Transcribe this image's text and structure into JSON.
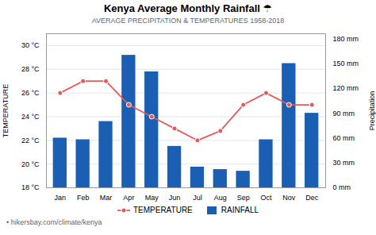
{
  "chart_data": {
    "type": "bar",
    "title": "Kenya Average Monthly Rainfall ☂",
    "subtitle": "AVERAGE PRECIPITATION & TEMPERATURES 1958-2018",
    "footer": "• hikersbay.com/climate/kenya",
    "categories": [
      "Jan",
      "Feb",
      "Mar",
      "Apr",
      "May",
      "Jun",
      "Jul",
      "Aug",
      "Sep",
      "Oct",
      "Nov",
      "Dec"
    ],
    "series": [
      {
        "name": "TEMPERATURE",
        "type": "line",
        "marker": "circle",
        "color": "#e05c5c",
        "values": [
          26.0,
          27.0,
          27.0,
          25.0,
          24.0,
          23.0,
          22.0,
          22.8,
          25.0,
          26.0,
          25.0,
          25.0
        ]
      },
      {
        "name": "RAINFALL",
        "type": "bar",
        "color": "#1a5fb4",
        "axis": "y2",
        "values": [
          60,
          58,
          80,
          160,
          140,
          50,
          25,
          22,
          20,
          58,
          150,
          90
        ]
      }
    ],
    "y_label": "TEMPERATURE",
    "y2_label": "Precipitation",
    "ylim": [
      18,
      31
    ],
    "yticks": [
      {
        "value": 18,
        "label": "18 °C"
      },
      {
        "value": 20,
        "label": "20 °C"
      },
      {
        "value": 22,
        "label": "22 °C"
      },
      {
        "value": 24,
        "label": "24 °C"
      },
      {
        "value": 26,
        "label": "26 °C"
      },
      {
        "value": 28,
        "label": "28 °C"
      },
      {
        "value": 30,
        "label": "30 °C"
      }
    ],
    "y2lim": [
      0,
      186
    ],
    "y2ticks": [
      {
        "value": 0,
        "label": "0 mm"
      },
      {
        "value": 30,
        "label": "30 mm"
      },
      {
        "value": 60,
        "label": "60 mm"
      },
      {
        "value": 90,
        "label": "90 mm"
      },
      {
        "value": 120,
        "label": "120 mm"
      },
      {
        "value": 150,
        "label": "150 mm"
      },
      {
        "value": 180,
        "label": "180 mm"
      }
    ],
    "grid": true,
    "legend": "bottom"
  }
}
